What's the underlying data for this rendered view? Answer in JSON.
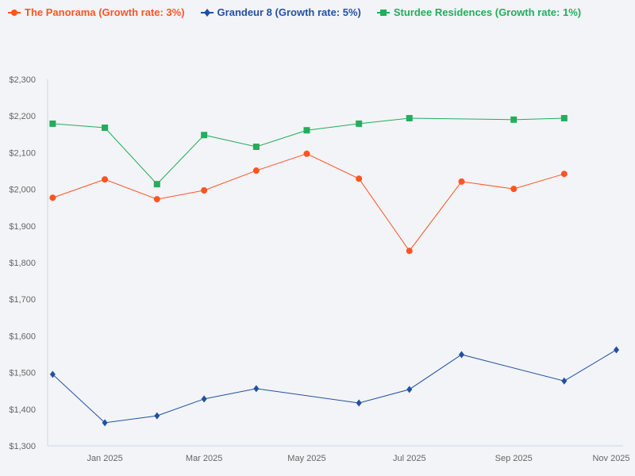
{
  "chart_data": {
    "type": "line",
    "x": [
      "2024-12",
      "2025-01",
      "2025-02",
      "2025-03",
      "2025-04",
      "2025-05",
      "2025-06",
      "2025-07",
      "2025-08",
      "2025-09",
      "2025-10",
      "2025-11"
    ],
    "x_tick_labels": [
      "Jan 2025",
      "Mar 2025",
      "May 2025",
      "Jul 2025",
      "Sep 2025",
      "Nov 2025"
    ],
    "x_tick_months": [
      "2025-01",
      "2025-03",
      "2025-05",
      "2025-07",
      "2025-09",
      "2025-11"
    ],
    "y_tick_labels": [
      "$1,300",
      "$1,400",
      "$1,500",
      "$1,600",
      "$1,700",
      "$1,800",
      "$1,900",
      "$2,000",
      "$2,100",
      "$2,200",
      "$2,300"
    ],
    "ylim": [
      1300,
      2300
    ],
    "grid": false,
    "legend_position": "top-left",
    "series": [
      {
        "name": "The Panorama (Growth rate: 3%)",
        "color": "#fc5424",
        "marker": "circle",
        "values": [
          1977,
          2027,
          1973,
          1997,
          2051,
          2097,
          2029,
          1832,
          2021,
          2001,
          2042,
          null
        ]
      },
      {
        "name": "Grandeur 8 (Growth rate: 5%)",
        "color": "#2251a3",
        "marker": "diamond",
        "values": [
          1495,
          1363,
          1382,
          1428,
          1456,
          null,
          1417,
          1454,
          1549,
          null,
          1477,
          1562
        ]
      },
      {
        "name": "Sturdee Residences (Growth rate: 1%)",
        "color": "#23ad5c",
        "marker": "square",
        "values": [
          2179,
          2168,
          2014,
          2148,
          2116,
          2161,
          2179,
          2194,
          null,
          2190,
          2194,
          null
        ]
      }
    ]
  }
}
